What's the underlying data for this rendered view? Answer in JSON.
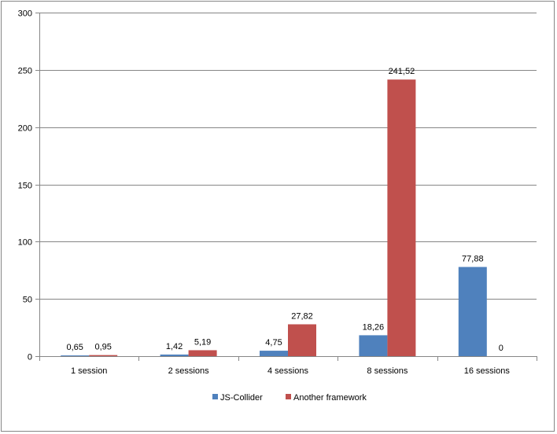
{
  "chart_data": {
    "type": "bar",
    "categories": [
      "1 session",
      "2 sessions",
      "4 sessions",
      "8 sessions",
      "16 sessions"
    ],
    "series": [
      {
        "name": "JS-Collider",
        "color": "#4F81BD",
        "values": [
          0.65,
          1.42,
          4.75,
          18.26,
          77.88
        ],
        "labels": [
          "0,65",
          "1,42",
          "4,75",
          "18,26",
          "77,88"
        ]
      },
      {
        "name": "Another framework",
        "color": "#C0504D",
        "values": [
          0.95,
          5.19,
          27.82,
          241.52,
          0
        ],
        "labels": [
          "0,95",
          "5,19",
          "27,82",
          "241,52",
          "0"
        ]
      }
    ],
    "ylim": [
      0,
      300
    ],
    "yticks": [
      0,
      50,
      100,
      150,
      200,
      250,
      300
    ],
    "grid": true,
    "legend": "bottom",
    "gridline_color": "#868686"
  }
}
